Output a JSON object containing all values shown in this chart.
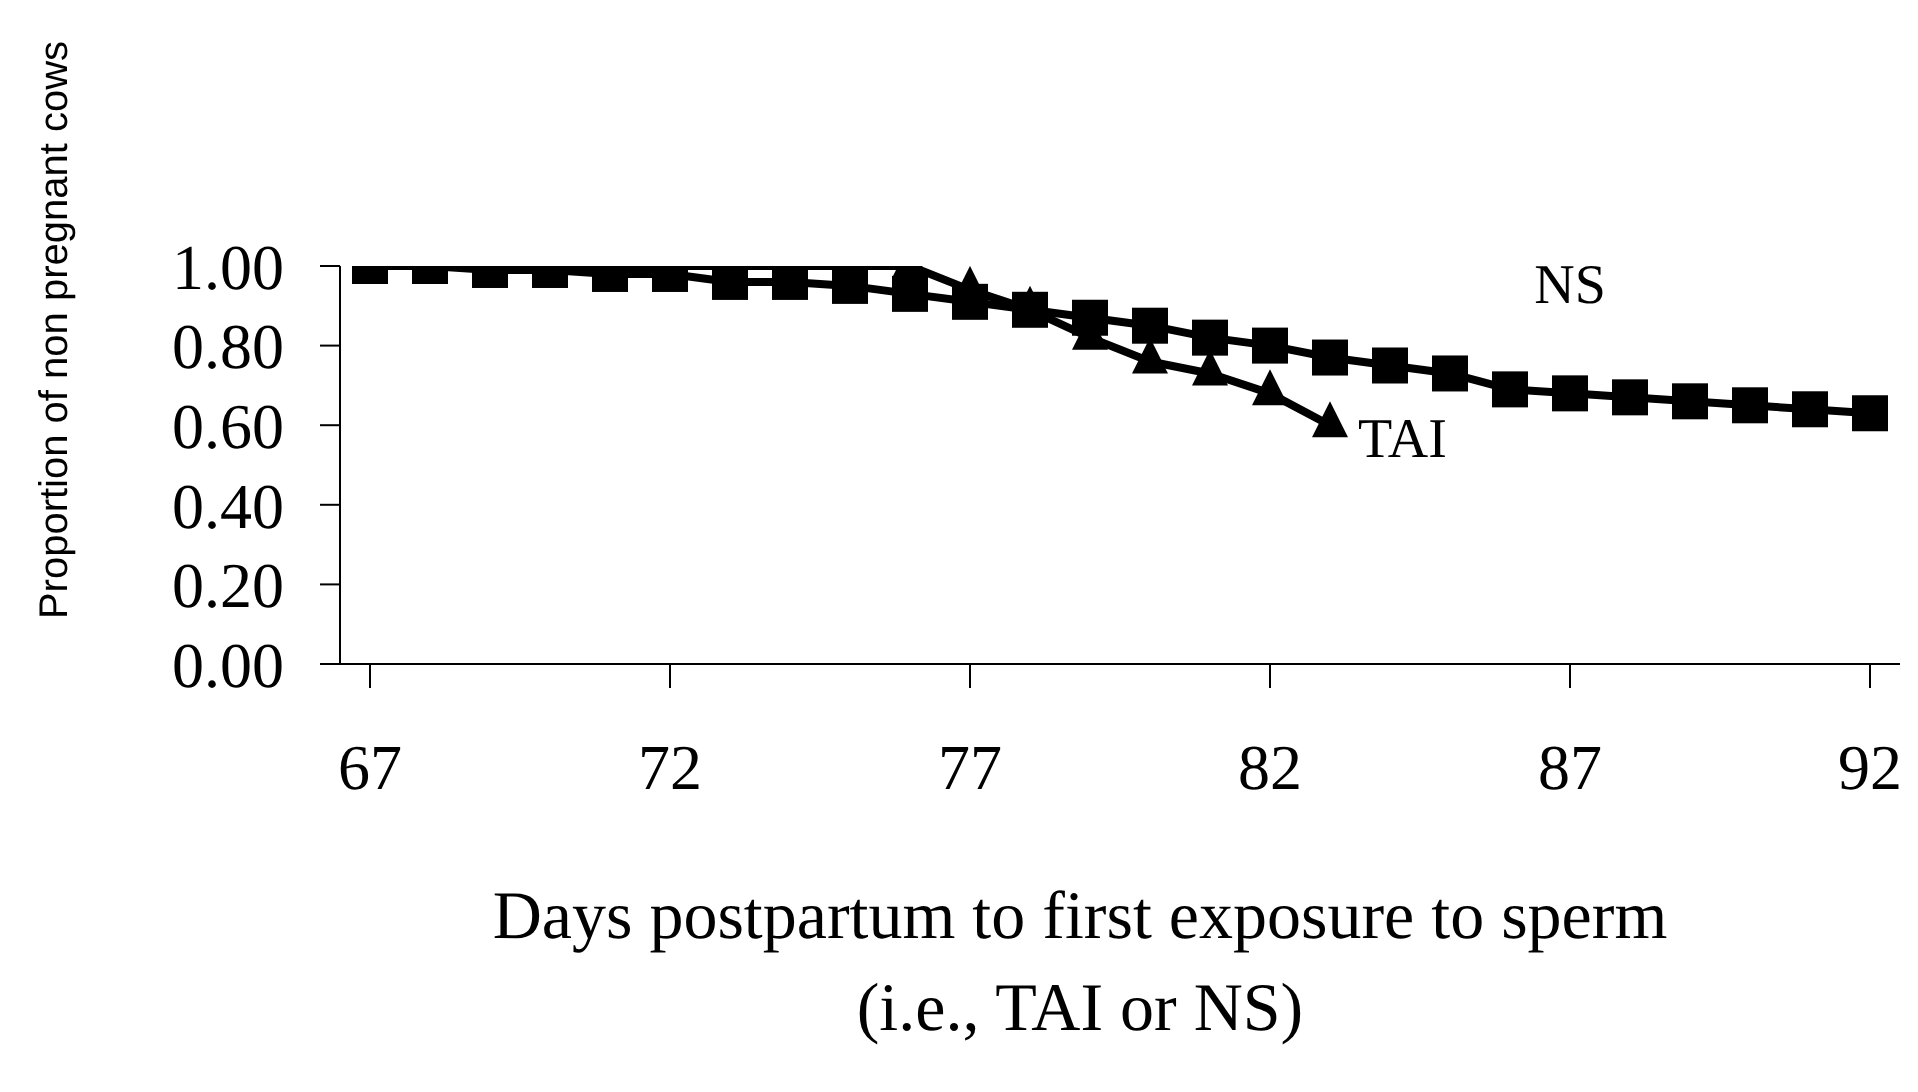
{
  "chart_data": {
    "type": "line",
    "xlabel": "Days postpartum to first exposure to sperm\n(i.e., TAI or NS)",
    "ylabel": "Proportion of non pregnant cows",
    "x": [
      67,
      68,
      69,
      70,
      71,
      72,
      73,
      74,
      75,
      76,
      77,
      78,
      79,
      80,
      81,
      82,
      83,
      84,
      85,
      86,
      87,
      88,
      89,
      90,
      91,
      92
    ],
    "series": [
      {
        "name": "NS",
        "color": "#000000",
        "marker": "square",
        "values": [
          1.0,
          1.0,
          0.99,
          0.99,
          0.98,
          0.98,
          0.96,
          0.96,
          0.95,
          0.93,
          0.91,
          0.89,
          0.87,
          0.85,
          0.82,
          0.8,
          0.77,
          0.75,
          0.73,
          0.69,
          0.68,
          0.67,
          0.66,
          0.65,
          0.64,
          0.63
        ]
      },
      {
        "name": "TAI",
        "color": "#000000",
        "marker": "triangle",
        "x": [
          67,
          68,
          69,
          70,
          71,
          72,
          73,
          74,
          75,
          76,
          77,
          78,
          79,
          80,
          81,
          82,
          83
        ],
        "values": [
          1.0,
          1.0,
          1.0,
          1.0,
          1.0,
          1.0,
          1.0,
          1.0,
          1.0,
          1.0,
          0.94,
          0.89,
          0.82,
          0.76,
          0.73,
          0.68,
          0.6
        ]
      }
    ],
    "xlim": [
      66.5,
      92.5
    ],
    "xticks": [
      67,
      72,
      77,
      82,
      87,
      92
    ],
    "ylim": [
      0,
      1
    ],
    "yticks": [
      {
        "value": 0,
        "label": "0.00"
      },
      {
        "value": 0.2,
        "label": "0.20"
      },
      {
        "value": 0.4,
        "label": "0.40"
      },
      {
        "value": 0.6,
        "label": "0.60"
      },
      {
        "value": 0.8,
        "label": "0.80"
      },
      {
        "value": 1,
        "label": "1.00"
      }
    ],
    "grid": false,
    "legend": "right"
  }
}
